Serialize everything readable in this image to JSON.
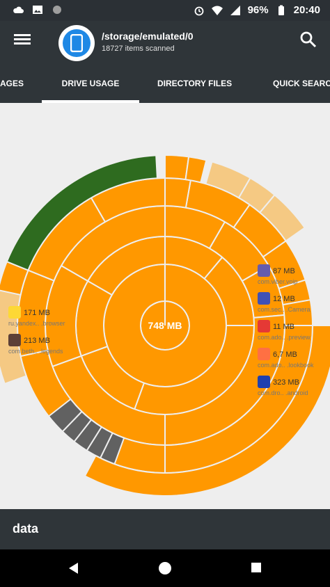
{
  "status": {
    "battery": "96%",
    "time": "20:40"
  },
  "header": {
    "path": "/storage/emulated/0",
    "items_scanned": "18727 items scanned"
  },
  "tabs": [
    "AGES",
    "DRIVE USAGE",
    "DIRECTORY FILES",
    "QUICK SEARC"
  ],
  "chart": {
    "center_label": "748 MB",
    "colors": {
      "orange": "#ff9800",
      "light": "#f5c983",
      "green": "#2e6b1f",
      "gray": "#616161"
    },
    "items": [
      {
        "size": "87 MB",
        "name": "com.viber.voip",
        "icon": "viber-icon"
      },
      {
        "size": "12 MB",
        "name": "com.sec.. .Camera",
        "icon": "camera-app-icon"
      },
      {
        "size": "11 MB",
        "name": "com.ado.. .preview",
        "icon": "adobe-icon"
      },
      {
        "size": "6,7 MB",
        "name": "com.ado.. .lookbook",
        "icon": "lookbook-icon"
      },
      {
        "size": "323 MB",
        "name": "com.dro.. .android",
        "icon": "dropbox-icon"
      },
      {
        "size": "171 MB",
        "name": "ru.yandex.. .browser",
        "icon": "yandex-icon"
      },
      {
        "size": "213 MB",
        "name": "com.beth.. .legends",
        "icon": "legends-icon"
      }
    ]
  },
  "bottom": {
    "label": "data"
  }
}
